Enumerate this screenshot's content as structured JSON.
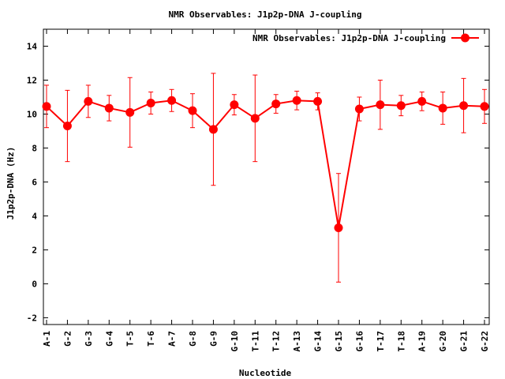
{
  "chart_data": {
    "type": "line",
    "title": "NMR Observables: J1p2p-DNA J-coupling",
    "xlabel": "Nucleotide",
    "ylabel": "J1p2p-DNA (Hz)",
    "ylim": [
      -2.4,
      15
    ],
    "yticks": [
      -2,
      0,
      2,
      4,
      6,
      8,
      10,
      12,
      14
    ],
    "legend_position": "top-right",
    "grid": false,
    "series": [
      {
        "name": "NMR Observables: J1p2p-DNA J-coupling",
        "color": "#ff0000",
        "categories": [
          "A-1",
          "G-2",
          "G-3",
          "G-4",
          "T-5",
          "T-6",
          "A-7",
          "G-8",
          "G-9",
          "G-10",
          "T-11",
          "T-12",
          "A-13",
          "G-14",
          "G-15",
          "G-16",
          "T-17",
          "T-18",
          "A-19",
          "G-20",
          "G-21",
          "G-22"
        ],
        "values": [
          10.45,
          9.3,
          10.75,
          10.35,
          10.1,
          10.65,
          10.8,
          10.2,
          9.1,
          10.55,
          9.75,
          10.6,
          10.8,
          10.75,
          3.3,
          10.3,
          10.55,
          10.5,
          10.75,
          10.35,
          10.5,
          10.45
        ],
        "errors": [
          1.25,
          2.1,
          0.95,
          0.75,
          2.05,
          0.65,
          0.65,
          1.0,
          3.3,
          0.6,
          2.55,
          0.55,
          0.55,
          0.5,
          3.2,
          0.7,
          1.45,
          0.6,
          0.55,
          0.95,
          1.6,
          1.0
        ]
      }
    ]
  }
}
